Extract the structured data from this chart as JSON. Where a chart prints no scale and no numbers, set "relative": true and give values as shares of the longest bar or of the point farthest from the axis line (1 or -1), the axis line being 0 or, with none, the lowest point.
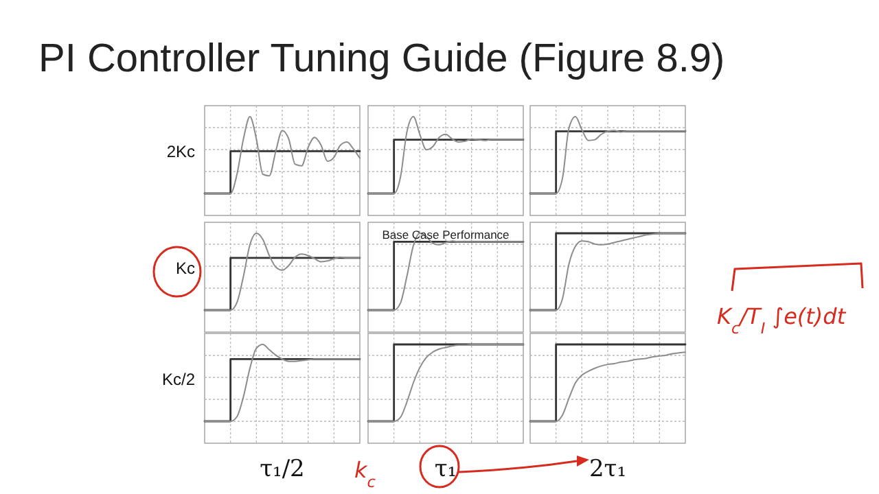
{
  "chart_data": [
    {
      "type": "line",
      "title": "PI Controller Tuning Guide (Figure 8.9)",
      "ylabel": "2Kc",
      "relative": true,
      "grid": true,
      "categories": [
        null,
        null,
        null,
        null,
        null,
        null,
        null,
        null,
        null,
        null,
        null,
        null,
        null,
        null,
        null,
        null,
        null,
        null,
        null,
        null,
        null,
        null,
        null,
        null,
        null
      ],
      "series": [
        {
          "type": "step",
          "color": "#333333",
          "values": [
            0,
            0,
            0,
            0,
            0.55,
            0.55,
            0.55,
            0.55,
            0.55,
            0.55,
            0.55,
            0.55,
            0.55,
            0.55,
            0.55,
            0.55,
            0.55,
            0.55,
            0.55,
            0.55,
            0.55,
            0.55,
            0.55,
            0.55,
            0.55
          ]
        },
        {
          "type": "line",
          "color": "#8c8c8c",
          "values": [
            0,
            0,
            0,
            0,
            0,
            0.25,
            0.71,
            1,
            0.71,
            0.25,
            0.23,
            0.55,
            0.82,
            0.71,
            0.38,
            0.36,
            0.6,
            0.73,
            0.63,
            0.42,
            0.47,
            0.63,
            0.67,
            0.58,
            0.46
          ]
        }
      ]
    },
    {
      "type": "line",
      "relative": true,
      "grid": true,
      "categories": [
        null,
        null,
        null,
        null,
        null,
        null,
        null,
        null,
        null,
        null,
        null,
        null,
        null,
        null,
        null,
        null,
        null,
        null,
        null,
        null,
        null,
        null,
        null,
        null,
        null
      ],
      "series": [
        {
          "type": "step",
          "color": "#333333",
          "values": [
            0,
            0,
            0,
            0,
            0.7,
            0.7,
            0.7,
            0.7,
            0.7,
            0.7,
            0.7,
            0.7,
            0.7,
            0.7,
            0.7,
            0.7,
            0.7,
            0.7,
            0.7,
            0.7,
            0.7,
            0.7,
            0.7,
            0.7,
            0.7
          ]
        },
        {
          "type": "line",
          "color": "#8c8c8c",
          "values": [
            0,
            0,
            0,
            0,
            0,
            0.21,
            0.8,
            1,
            0.77,
            0.57,
            0.61,
            0.73,
            0.77,
            0.71,
            0.67,
            0.68,
            0.71,
            0.7,
            0.69,
            0.7,
            0.7,
            0.7,
            0.7,
            0.7,
            0.7
          ]
        }
      ]
    },
    {
      "type": "line",
      "relative": true,
      "grid": true,
      "categories": [
        null,
        null,
        null,
        null,
        null,
        null,
        null,
        null,
        null,
        null,
        null,
        null,
        null,
        null,
        null,
        null,
        null,
        null,
        null,
        null,
        null,
        null,
        null,
        null,
        null
      ],
      "series": [
        {
          "type": "step",
          "color": "#333333",
          "values": [
            0,
            0,
            0,
            0,
            0.81,
            0.81,
            0.81,
            0.81,
            0.81,
            0.81,
            0.81,
            0.81,
            0.81,
            0.81,
            0.81,
            0.81,
            0.81,
            0.81,
            0.81,
            0.81,
            0.81,
            0.81,
            0.81,
            0.81,
            0.81
          ]
        },
        {
          "type": "line",
          "color": "#8c8c8c",
          "values": [
            0,
            0,
            0,
            0,
            0,
            0.2,
            0.85,
            1,
            0.83,
            0.69,
            0.7,
            0.77,
            0.81,
            0.82,
            0.8,
            0.81,
            0.81,
            0.81,
            0.81,
            0.81,
            0.81,
            0.81,
            0.81,
            0.81,
            0.81
          ]
        }
      ]
    },
    {
      "type": "line",
      "ylabel": "Kc",
      "relative": true,
      "grid": true,
      "categories": [
        null,
        null,
        null,
        null,
        null,
        null,
        null,
        null,
        null,
        null,
        null,
        null,
        null,
        null,
        null,
        null,
        null,
        null,
        null,
        null,
        null,
        null,
        null,
        null,
        null
      ],
      "series": [
        {
          "type": "step",
          "color": "#333333",
          "values": [
            0,
            0,
            0,
            0,
            0.68,
            0.68,
            0.68,
            0.68,
            0.68,
            0.68,
            0.68,
            0.68,
            0.68,
            0.68,
            0.68,
            0.68,
            0.68,
            0.68,
            0.68,
            0.68,
            0.68,
            0.68,
            0.68,
            0.68,
            0.68
          ]
        },
        {
          "type": "line",
          "color": "#8c8c8c",
          "values": [
            0,
            0,
            0,
            0,
            0,
            0.1,
            0.44,
            0.85,
            1,
            0.92,
            0.71,
            0.56,
            0.52,
            0.58,
            0.69,
            0.73,
            0.71,
            0.67,
            0.63,
            0.64,
            0.67,
            0.69,
            0.68,
            0.68,
            0.68
          ]
        }
      ]
    },
    {
      "type": "line",
      "title": "Base Case Performance",
      "relative": true,
      "grid": true,
      "categories": [
        null,
        null,
        null,
        null,
        null,
        null,
        null,
        null,
        null,
        null,
        null,
        null,
        null,
        null,
        null,
        null,
        null,
        null,
        null,
        null,
        null,
        null,
        null,
        null,
        null
      ],
      "series": [
        {
          "type": "step",
          "color": "#333333",
          "values": [
            0,
            0,
            0,
            0,
            0.89,
            0.89,
            0.89,
            0.89,
            0.89,
            0.89,
            0.89,
            0.89,
            0.89,
            0.89,
            0.89,
            0.89,
            0.89,
            0.89,
            0.89,
            0.89,
            0.89,
            0.89,
            0.89,
            0.89,
            0.89
          ]
        },
        {
          "type": "line",
          "color": "#8c8c8c",
          "values": [
            0,
            0,
            0,
            0,
            0,
            0.09,
            0.44,
            0.84,
            1,
            0.96,
            0.87,
            0.85,
            0.88,
            0.9,
            0.89,
            0.89,
            0.89,
            0.89,
            0.89,
            0.89,
            0.89,
            0.89,
            0.89,
            0.89,
            0.89
          ]
        }
      ]
    },
    {
      "type": "line",
      "relative": true,
      "grid": true,
      "categories": [
        null,
        null,
        null,
        null,
        null,
        null,
        null,
        null,
        null,
        null,
        null,
        null,
        null,
        null,
        null,
        null,
        null,
        null,
        null,
        null,
        null,
        null,
        null,
        null,
        null
      ],
      "series": [
        {
          "type": "step",
          "color": "#333333",
          "values": [
            0,
            0,
            0,
            0,
            1,
            1,
            1,
            1,
            1,
            1,
            1,
            1,
            1,
            1,
            1,
            1,
            1,
            1,
            1,
            1,
            1,
            1,
            1,
            1,
            1
          ]
        },
        {
          "type": "line",
          "color": "#8c8c8c",
          "values": [
            0,
            0,
            0,
            0,
            0,
            0.15,
            0.6,
            0.83,
            0.9,
            0.89,
            0.86,
            0.85,
            0.86,
            0.88,
            0.9,
            0.92,
            0.94,
            0.96,
            0.98,
            0.99,
            1,
            1,
            1,
            1,
            1
          ]
        }
      ]
    },
    {
      "type": "line",
      "ylabel": "Kc/2",
      "xlabel": "τ₁/2",
      "relative": true,
      "grid": true,
      "categories": [
        null,
        null,
        null,
        null,
        null,
        null,
        null,
        null,
        null,
        null,
        null,
        null,
        null,
        null,
        null,
        null,
        null,
        null,
        null,
        null,
        null,
        null,
        null,
        null,
        null
      ],
      "series": [
        {
          "type": "step",
          "color": "#333333",
          "values": [
            0,
            0,
            0,
            0,
            0.81,
            0.81,
            0.81,
            0.81,
            0.81,
            0.81,
            0.81,
            0.81,
            0.81,
            0.81,
            0.81,
            0.81,
            0.81,
            0.81,
            0.81,
            0.81,
            0.81,
            0.81,
            0.81,
            0.81,
            0.81
          ]
        },
        {
          "type": "line",
          "color": "#8c8c8c",
          "values": [
            0,
            0,
            0,
            0,
            0,
            0.06,
            0.32,
            0.69,
            0.95,
            1,
            0.93,
            0.86,
            0.81,
            0.78,
            0.78,
            0.79,
            0.8,
            0.81,
            0.81,
            0.81,
            0.81,
            0.81,
            0.81,
            0.81,
            0.81
          ]
        }
      ]
    },
    {
      "type": "line",
      "xlabel": "τ₁",
      "relative": true,
      "grid": true,
      "annotations": [
        "k$_{c}$"
      ],
      "categories": [
        null,
        null,
        null,
        null,
        null,
        null,
        null,
        null,
        null,
        null,
        null,
        null,
        null,
        null,
        null,
        null,
        null,
        null,
        null,
        null,
        null,
        null,
        null,
        null,
        null
      ],
      "series": [
        {
          "type": "step",
          "color": "#333333",
          "values": [
            0,
            0,
            0,
            0,
            1,
            1,
            1,
            1,
            1,
            1,
            1,
            1,
            1,
            1,
            1,
            1,
            1,
            1,
            1,
            1,
            1,
            1,
            1,
            1,
            1
          ]
        },
        {
          "type": "line",
          "color": "#8c8c8c",
          "values": [
            0,
            0,
            0,
            0,
            0,
            0.05,
            0.25,
            0.5,
            0.7,
            0.83,
            0.9,
            0.94,
            0.96,
            0.98,
            0.99,
            0.99,
            1,
            1,
            1,
            1,
            1,
            1,
            1,
            1,
            1
          ]
        }
      ]
    },
    {
      "type": "line",
      "xlabel": "2τ₁",
      "relative": true,
      "grid": true,
      "annotations": [
        "K$_{c}$/T$_{I}$ ∫e(t)dt"
      ],
      "categories": [
        null,
        null,
        null,
        null,
        null,
        null,
        null,
        null,
        null,
        null,
        null,
        null,
        null,
        null,
        null,
        null,
        null,
        null,
        null,
        null,
        null,
        null,
        null,
        null,
        null
      ],
      "series": [
        {
          "type": "step",
          "color": "#333333",
          "values": [
            0,
            0,
            0,
            0,
            1,
            1,
            1,
            1,
            1,
            1,
            1,
            1,
            1,
            1,
            1,
            1,
            1,
            1,
            1,
            1,
            1,
            1,
            1,
            1,
            1
          ]
        },
        {
          "type": "line",
          "color": "#8c8c8c",
          "values": [
            0,
            0,
            0,
            0,
            0,
            0.08,
            0.3,
            0.5,
            0.6,
            0.65,
            0.69,
            0.72,
            0.74,
            0.75,
            0.77,
            0.78,
            0.8,
            0.81,
            0.82,
            0.84,
            0.85,
            0.86,
            0.88,
            0.89,
            0.9
          ]
        }
      ]
    }
  ]
}
